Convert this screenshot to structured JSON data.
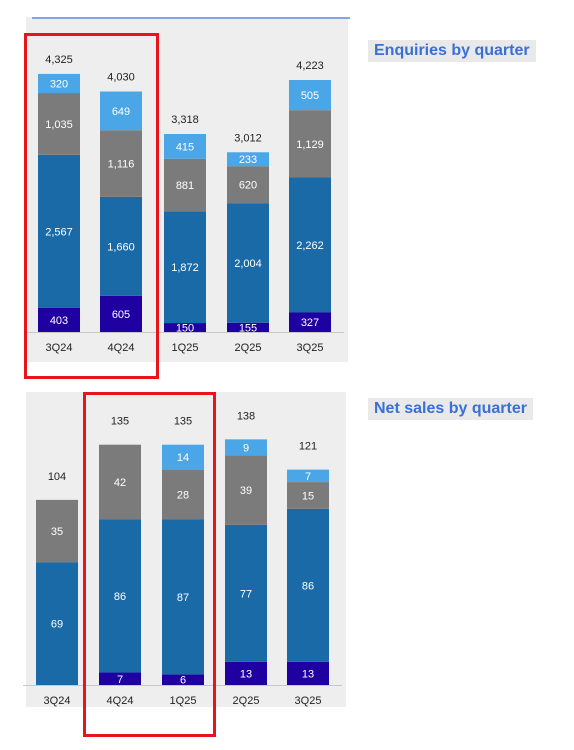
{
  "colors": {
    "dark": "#1f00a0",
    "mid": "#1b6aa8",
    "gray": "#7b7b7b",
    "light": "#4aa6e6",
    "highlight": "#e8141b",
    "title": "#3a6fd8"
  },
  "chart_data": [
    {
      "type": "bar",
      "stacked": true,
      "title": "Enquiries by quarter",
      "categories": [
        "3Q24",
        "4Q24",
        "1Q25",
        "2Q25",
        "3Q25"
      ],
      "totals": [
        "4,325",
        "4,030",
        "3,318",
        "3,012",
        "4,223"
      ],
      "series": [
        {
          "values": [
            403,
            605,
            150,
            155,
            327
          ],
          "labels": [
            "403",
            "605",
            "150",
            "155",
            "327"
          ],
          "color": "#1f00a0"
        },
        {
          "values": [
            2567,
            1660,
            1872,
            2004,
            2262
          ],
          "labels": [
            "2,567",
            "1,660",
            "1,872",
            "2,004",
            "2,262"
          ],
          "color": "#1b6aa8"
        },
        {
          "values": [
            1035,
            1116,
            881,
            620,
            1129
          ],
          "labels": [
            "1,035",
            "1,116",
            "881",
            "620",
            "1,129"
          ],
          "color": "#7b7b7b"
        },
        {
          "values": [
            320,
            649,
            415,
            233,
            505
          ],
          "labels": [
            "320",
            "649",
            "415",
            "233",
            "505"
          ],
          "color": "#4aa6e6"
        }
      ],
      "highlighted_categories": [
        "3Q24"
      ]
    },
    {
      "type": "bar",
      "stacked": true,
      "title": "Net sales by quarter",
      "categories": [
        "3Q24",
        "4Q24",
        "1Q25",
        "2Q25",
        "3Q25"
      ],
      "totals": [
        "104",
        "135",
        "135",
        "138",
        "121"
      ],
      "series": [
        {
          "values": [
            0,
            7,
            6,
            13,
            13
          ],
          "labels": [
            "",
            "7",
            "6",
            "13",
            "13"
          ],
          "color": "#1f00a0"
        },
        {
          "values": [
            69,
            86,
            87,
            77,
            86
          ],
          "labels": [
            "69",
            "86",
            "87",
            "77",
            "86"
          ],
          "color": "#1b6aa8"
        },
        {
          "values": [
            35,
            42,
            28,
            39,
            15
          ],
          "labels": [
            "35",
            "42",
            "28",
            "39",
            "15"
          ],
          "color": "#7b7b7b"
        },
        {
          "values": [
            0,
            0,
            14,
            9,
            7
          ],
          "labels": [
            "",
            "",
            "14",
            "9",
            "7"
          ],
          "color": "#4aa6e6"
        }
      ],
      "highlighted_categories": [
        "4Q24",
        "1Q25"
      ]
    }
  ]
}
